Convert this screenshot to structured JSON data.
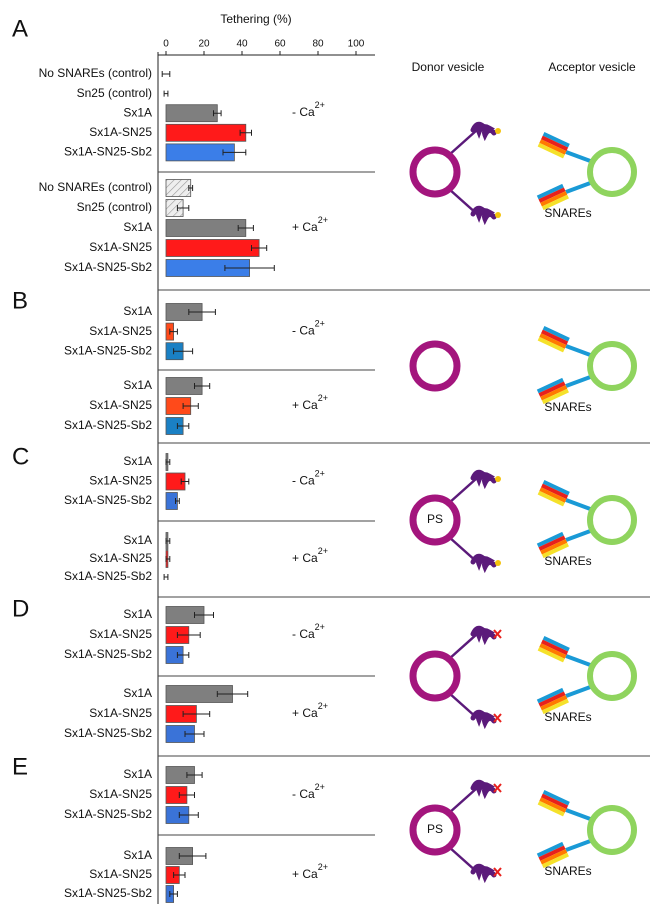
{
  "chart_data": {
    "type": "bar",
    "orientation": "horizontal",
    "xlabel": "Tethering (%)",
    "xlim": [
      -4,
      110
    ],
    "xticks": [
      0,
      20,
      40,
      60,
      80,
      100
    ],
    "diagram_headers": [
      "Donor vesicle",
      "Acceptor vesicle"
    ],
    "panels": [
      {
        "label": "A",
        "donor_label": null,
        "acceptor_label": "SNAREs",
        "groups": [
          {
            "condition": "- Ca",
            "condition_sup": "2+",
            "categories": [
              "No SNAREs (control)",
              "Sn25 (control)",
              "Sx1A",
              "Sx1A-SN25",
              "Sx1A-SN25-Sb2"
            ],
            "values": [
              0,
              0,
              27,
              42,
              36
            ],
            "errors": [
              2,
              1,
              2,
              3,
              6
            ],
            "colors": [
              "#7f7f7f",
              "#7f7f7f",
              "#7f7f7f",
              "#ff1a1a",
              "#3b7ee8"
            ],
            "hatch": [
              false,
              false,
              false,
              false,
              false
            ]
          },
          {
            "condition": "+ Ca",
            "condition_sup": "2+",
            "categories": [
              "No SNAREs (control)",
              "Sn25 (control)",
              "Sx1A",
              "Sx1A-SN25",
              "Sx1A-SN25-Sb2"
            ],
            "values": [
              13,
              9,
              42,
              49,
              44
            ],
            "errors": [
              1,
              3,
              4,
              4,
              13
            ],
            "colors": [
              "#e6e6e6",
              "#e6e6e6",
              "#7f7f7f",
              "#ff1a1a",
              "#3b7ee8"
            ],
            "hatch": [
              true,
              true,
              false,
              false,
              false
            ]
          }
        ]
      },
      {
        "label": "B",
        "donor_label": null,
        "acceptor_label": "SNAREs",
        "groups": [
          {
            "condition": "- Ca",
            "condition_sup": "2+",
            "categories": [
              "Sx1A",
              "Sx1A-SN25",
              "Sx1A-SN25-Sb2"
            ],
            "values": [
              19,
              4,
              9
            ],
            "errors": [
              7,
              2,
              5
            ],
            "colors": [
              "#7f7f7f",
              "#ff4a1a",
              "#1a80c4"
            ],
            "hatch": [
              false,
              false,
              false
            ]
          },
          {
            "condition": "+ Ca",
            "condition_sup": "2+",
            "categories": [
              "Sx1A",
              "Sx1A-SN25",
              "Sx1A-SN25-Sb2"
            ],
            "values": [
              19,
              13,
              9
            ],
            "errors": [
              4,
              4,
              3
            ],
            "colors": [
              "#7f7f7f",
              "#ff4a1a",
              "#1a80c4"
            ],
            "hatch": [
              false,
              false,
              false
            ]
          }
        ]
      },
      {
        "label": "C",
        "donor_label": "PS",
        "acceptor_label": "SNAREs",
        "groups": [
          {
            "condition": "- Ca",
            "condition_sup": "2+",
            "categories": [
              "Sx1A",
              "Sx1A-SN25",
              "Sx1A-SN25-Sb2"
            ],
            "values": [
              1,
              10,
              6
            ],
            "errors": [
              1,
              2,
              1
            ],
            "colors": [
              "#7f7f7f",
              "#ff1a1a",
              "#3a73d8"
            ],
            "hatch": [
              false,
              false,
              false
            ]
          },
          {
            "condition": "+ Ca",
            "condition_sup": "2+",
            "categories": [
              "Sx1A",
              "Sx1A-SN25",
              "Sx1A-SN25-Sb2"
            ],
            "values": [
              1,
              1,
              0
            ],
            "errors": [
              1,
              1,
              1
            ],
            "colors": [
              "#7f7f7f",
              "#ff1a1a",
              "#3a73d8"
            ],
            "hatch": [
              false,
              false,
              false
            ]
          }
        ]
      },
      {
        "label": "D",
        "donor_label": null,
        "acceptor_label": "SNAREs",
        "groups": [
          {
            "condition": "- Ca",
            "condition_sup": "2+",
            "categories": [
              "Sx1A",
              "Sx1A-SN25",
              "Sx1A-SN25-Sb2"
            ],
            "values": [
              20,
              12,
              9
            ],
            "errors": [
              5,
              6,
              3
            ],
            "colors": [
              "#7f7f7f",
              "#ff1a1a",
              "#3a73d8"
            ],
            "hatch": [
              false,
              false,
              false
            ]
          },
          {
            "condition": "+ Ca",
            "condition_sup": "2+",
            "categories": [
              "Sx1A",
              "Sx1A-SN25",
              "Sx1A-SN25-Sb2"
            ],
            "values": [
              35,
              16,
              15
            ],
            "errors": [
              8,
              7,
              5
            ],
            "colors": [
              "#7f7f7f",
              "#ff1a1a",
              "#3a73d8"
            ],
            "hatch": [
              false,
              false,
              false
            ]
          }
        ]
      },
      {
        "label": "E",
        "donor_label": "PS",
        "acceptor_label": "SNAREs",
        "groups": [
          {
            "condition": "- Ca",
            "condition_sup": "2+",
            "categories": [
              "Sx1A",
              "Sx1A-SN25",
              "Sx1A-SN25-Sb2"
            ],
            "values": [
              15,
              11,
              12
            ],
            "errors": [
              4,
              4,
              5
            ],
            "colors": [
              "#7f7f7f",
              "#ff1a1a",
              "#3a73d8"
            ],
            "hatch": [
              false,
              false,
              false
            ]
          },
          {
            "condition": "+ Ca",
            "condition_sup": "2+",
            "categories": [
              "Sx1A",
              "Sx1A-SN25",
              "Sx1A-SN25-Sb2"
            ],
            "values": [
              14,
              7,
              4
            ],
            "errors": [
              7,
              3,
              2
            ],
            "colors": [
              "#7f7f7f",
              "#ff1a1a",
              "#3a73d8"
            ],
            "hatch": [
              false,
              false,
              false
            ]
          }
        ]
      }
    ]
  }
}
